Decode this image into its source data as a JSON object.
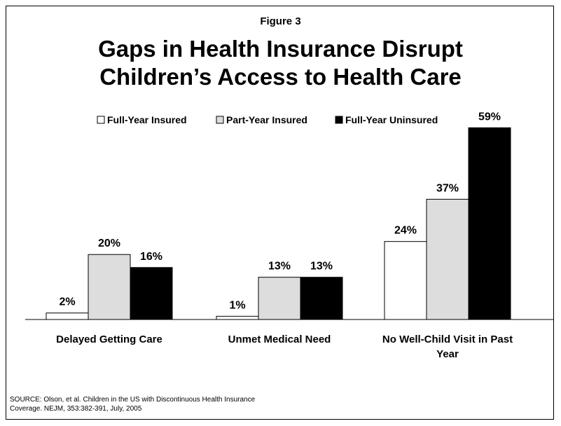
{
  "figure_label": "Figure 3",
  "title_line1": "Gaps in Health Insurance Disrupt",
  "title_line2": "Children’s Access to Health Care",
  "source_line1": "SOURCE:  Olson, et al.  Children in the US with Discontinuous Health Insurance",
  "source_line2": "Coverage.  NEJM, 353:382-391, July, 2005",
  "chart_data": {
    "type": "bar",
    "categories": [
      [
        "Delayed Getting Care"
      ],
      [
        "Unmet Medical Need"
      ],
      [
        "No Well-Child Visit in Past",
        "Year"
      ]
    ],
    "series": [
      {
        "name": "Full-Year Insured",
        "values": [
          2,
          1,
          24
        ],
        "color": "#ffffff"
      },
      {
        "name": "Part-Year Insured",
        "values": [
          20,
          13,
          37
        ],
        "color": "#dddddd"
      },
      {
        "name": "Full-Year Uninsured",
        "values": [
          16,
          13,
          59
        ],
        "color": "#000000"
      }
    ],
    "value_suffix": "%",
    "ylim": [
      0,
      60
    ],
    "grid": false,
    "legend_position": "top"
  }
}
